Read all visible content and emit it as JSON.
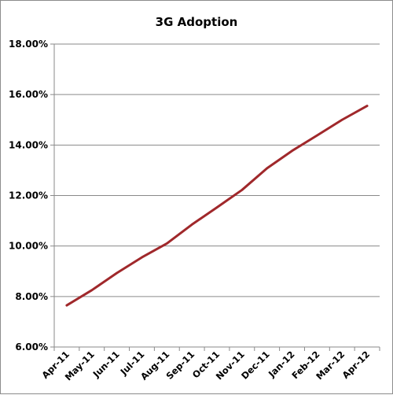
{
  "chart_data": {
    "type": "line",
    "title": "3G Adoption",
    "xlabel": "",
    "ylabel": "",
    "categories": [
      "Apr-11",
      "May-11",
      "Jun-11",
      "Jul-11",
      "Aug-11",
      "Sep-11",
      "Oct-11",
      "Nov-11",
      "Dec-11",
      "Jan-12",
      "Feb-12",
      "Mar-12",
      "Apr-12"
    ],
    "series": [
      {
        "values": [
          0.0765,
          0.0825,
          0.0893,
          0.0955,
          0.101,
          0.1085,
          0.1153,
          0.1222,
          0.1308,
          0.1377,
          0.1438,
          0.15,
          0.1555
        ],
        "color": "#a0282b"
      }
    ],
    "ylim": [
      0.06,
      0.18
    ],
    "yticks": [
      0.06,
      0.08,
      0.1,
      0.12,
      0.14,
      0.16,
      0.18
    ],
    "ytick_labels": [
      "6.00%",
      "8.00%",
      "10.00%",
      "12.00%",
      "14.00%",
      "16.00%",
      "18.00%"
    ],
    "grid": true,
    "legend": "none"
  }
}
